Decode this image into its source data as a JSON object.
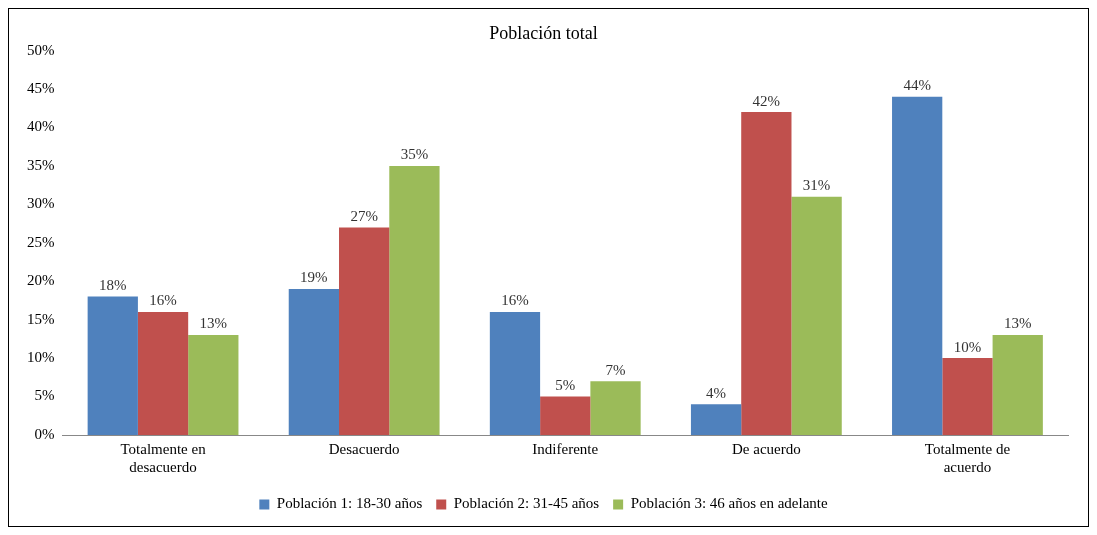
{
  "chart_data": {
    "type": "bar",
    "title": "Población total",
    "categories": [
      "Totalmente en desacuerdo",
      "Desacuerdo",
      "Indiferente",
      "De acuerdo",
      "Totalmente de acuerdo"
    ],
    "series": [
      {
        "name": "Población 1: 18-30 años",
        "color": "#4f81bd",
        "values": [
          18,
          19,
          16,
          4,
          44
        ]
      },
      {
        "name": "Población 2: 31-45 años",
        "color": "#c0504d",
        "values": [
          16,
          27,
          5,
          42,
          10
        ]
      },
      {
        "name": "Población 3: 46 años en adelante",
        "color": "#9bbb59",
        "values": [
          13,
          35,
          7,
          31,
          13
        ]
      }
    ],
    "ylim": [
      0,
      50
    ],
    "yticks": [
      {
        "value": 0,
        "label": "0%"
      },
      {
        "value": 5,
        "label": "5%"
      },
      {
        "value": 10,
        "label": "10%"
      },
      {
        "value": 15,
        "label": "15%"
      },
      {
        "value": 20,
        "label": "20%"
      },
      {
        "value": 25,
        "label": "25%"
      },
      {
        "value": 30,
        "label": "30%"
      },
      {
        "value": 35,
        "label": "35%"
      },
      {
        "value": 40,
        "label": "40%"
      },
      {
        "value": 45,
        "label": "45%"
      },
      {
        "value": 50,
        "label": "50%"
      }
    ],
    "value_labels": [
      [
        "18%",
        "19%",
        "16%",
        "4%",
        "44%"
      ],
      [
        "16%",
        "27%",
        "5%",
        "42%",
        "10%"
      ],
      [
        "13%",
        "35%",
        "7%",
        "31%",
        "13%"
      ]
    ],
    "grid": false,
    "legend": "bottom"
  }
}
